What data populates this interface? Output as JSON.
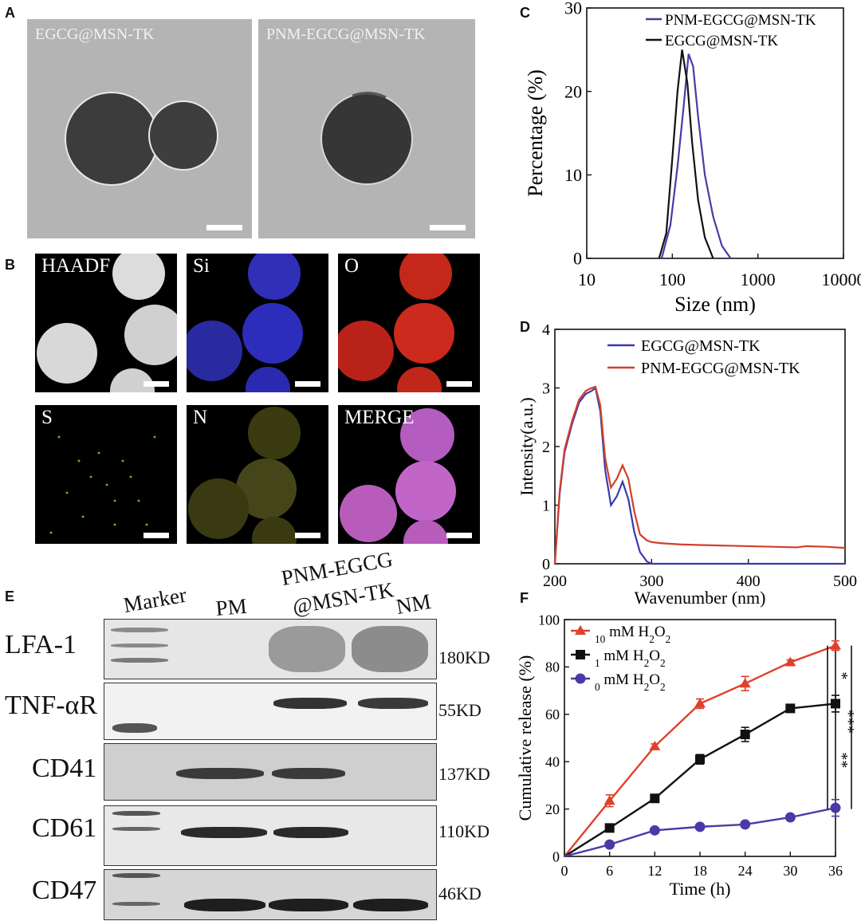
{
  "panels": {
    "a": "A",
    "b": "B",
    "c": "C",
    "d": "D",
    "e": "E",
    "f": "F"
  },
  "panel_a": {
    "images": [
      {
        "title": "EGCG@MSN-TK"
      },
      {
        "title": "PNM-EGCG@MSN-TK"
      }
    ]
  },
  "panel_b": {
    "maps": [
      {
        "label": "HAADF",
        "color": "#d8d8d8"
      },
      {
        "label": "Si",
        "color": "#2a2ad0"
      },
      {
        "label": "O",
        "color": "#e02a1a"
      },
      {
        "label": "S",
        "color": "#7ccf2a"
      },
      {
        "label": "N",
        "color": "#e6e22a"
      },
      {
        "label": "MERGE",
        "color": "#d06ad8"
      }
    ]
  },
  "panel_e": {
    "lanes": [
      "Marker",
      "PM",
      "PNM-EGCG",
      "@MSN-TK",
      "NM"
    ],
    "rows": [
      {
        "protein": "LFA-1",
        "size": "180KD"
      },
      {
        "protein": "TNF-αR",
        "size": "55KD"
      },
      {
        "protein": "CD41",
        "size": "137KD"
      },
      {
        "protein": "CD61",
        "size": "110KD"
      },
      {
        "protein": "CD47",
        "size": "46KD"
      }
    ]
  },
  "chart_data": [
    {
      "panel": "C",
      "type": "line",
      "xlabel": "Size (nm)",
      "ylabel": "Percentage (%)",
      "x_scale": "log",
      "xlim": [
        10,
        10000
      ],
      "ylim": [
        0,
        30
      ],
      "xticks": [
        "10",
        "100",
        "1000",
        "10000"
      ],
      "yticks": [
        "0",
        "10",
        "20",
        "30"
      ],
      "legend_position": "top-right",
      "series": [
        {
          "name": "PNM-EGCG@MSN-TK",
          "color": "#4a3aa8",
          "x": [
            75,
            95,
            115,
            135,
            155,
            175,
            200,
            240,
            300,
            380,
            480
          ],
          "y": [
            0,
            4,
            11,
            18,
            24.5,
            23,
            17,
            10,
            5,
            1.5,
            0
          ]
        },
        {
          "name": "EGCG@MSN-TK",
          "color": "#111111",
          "x": [
            70,
            85,
            100,
            115,
            130,
            150,
            170,
            200,
            240,
            300
          ],
          "y": [
            0,
            3,
            12,
            20,
            25,
            21,
            14,
            7,
            2.5,
            0
          ]
        }
      ]
    },
    {
      "panel": "D",
      "type": "line",
      "xlabel": "Wavenumber (nm)",
      "ylabel": "Intensity(a.u.)",
      "xlim": [
        200,
        500
      ],
      "ylim": [
        0,
        4
      ],
      "xticks": [
        "200",
        "300",
        "400",
        "500"
      ],
      "yticks": [
        "0",
        "1",
        "2",
        "3",
        "4"
      ],
      "legend_position": "top-right",
      "series": [
        {
          "name": "EGCG@MSN-TK",
          "color": "#3a3ab0",
          "x": [
            200,
            205,
            210,
            218,
            225,
            232,
            238,
            242,
            247,
            252,
            258,
            264,
            270,
            276,
            282,
            288,
            295,
            300,
            320,
            350,
            400,
            450,
            500
          ],
          "y": [
            0,
            1.2,
            1.9,
            2.4,
            2.75,
            2.9,
            2.95,
            3.0,
            2.6,
            1.6,
            1.0,
            1.15,
            1.4,
            1.1,
            0.55,
            0.2,
            0.04,
            0.0,
            0.0,
            0.0,
            0.0,
            0.0,
            0.0
          ]
        },
        {
          "name": "PNM-EGCG@MSN-TK",
          "color": "#d0402a",
          "x": [
            200,
            205,
            210,
            218,
            225,
            232,
            238,
            242,
            247,
            252,
            258,
            264,
            270,
            276,
            282,
            288,
            295,
            300,
            310,
            330,
            350,
            400,
            450,
            460,
            480,
            500
          ],
          "y": [
            0,
            1.25,
            1.95,
            2.45,
            2.8,
            2.95,
            3.0,
            3.02,
            2.7,
            1.8,
            1.3,
            1.45,
            1.68,
            1.45,
            0.9,
            0.5,
            0.4,
            0.37,
            0.35,
            0.33,
            0.32,
            0.3,
            0.28,
            0.3,
            0.29,
            0.27
          ]
        }
      ]
    },
    {
      "panel": "F",
      "type": "line",
      "xlabel": "Time (h)",
      "ylabel": "Cumulative release (%)",
      "xlim": [
        0,
        36
      ],
      "ylim": [
        0,
        100
      ],
      "xticks": [
        "0",
        "6",
        "12",
        "18",
        "24",
        "30",
        "36"
      ],
      "yticks": [
        "0",
        "20",
        "40",
        "60",
        "80",
        "100"
      ],
      "legend_position": "top-left",
      "series": [
        {
          "name": "10 mM H2O2",
          "color": "#e0402a",
          "marker": "triangle",
          "x": [
            0,
            6,
            12,
            18,
            24,
            30,
            36
          ],
          "y": [
            0,
            23.5,
            46.5,
            64.5,
            73,
            82,
            89
          ],
          "err": [
            0,
            2.5,
            1,
            2,
            3,
            1,
            2
          ]
        },
        {
          "name": "1 mM H2O2",
          "color": "#111111",
          "marker": "square",
          "x": [
            0,
            6,
            12,
            18,
            24,
            30,
            36
          ],
          "y": [
            0,
            12,
            24.5,
            41,
            51.5,
            62.5,
            64.5
          ],
          "err": [
            0,
            1,
            1,
            2,
            3,
            1,
            3.5
          ]
        },
        {
          "name": "0 mM H2O2",
          "color": "#4a3aa8",
          "marker": "circle",
          "x": [
            0,
            6,
            12,
            18,
            24,
            30,
            36
          ],
          "y": [
            0,
            5,
            11,
            12.5,
            13.5,
            16.5,
            20.5
          ],
          "err": [
            0,
            0.5,
            1,
            1,
            1,
            1,
            3.5
          ]
        }
      ],
      "significance": [
        "*",
        "**",
        "***"
      ]
    }
  ]
}
